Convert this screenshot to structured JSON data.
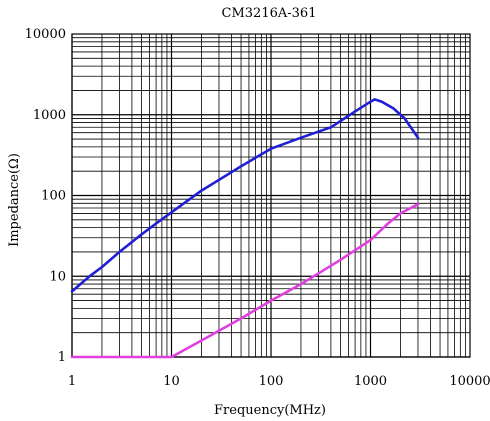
{
  "chart_data": {
    "type": "line",
    "title": "CM3216A-361",
    "xlabel": "Frequency(MHz)",
    "ylabel": "Impedance(Ω)",
    "xscale": "log",
    "yscale": "log",
    "xlim": [
      1,
      10000
    ],
    "ylim": [
      1,
      10000
    ],
    "x_ticks": [
      1,
      10,
      100,
      1000,
      10000
    ],
    "x_tick_labels": [
      "1",
      "10",
      "100",
      "1000",
      "10000"
    ],
    "y_ticks": [
      1,
      10,
      100,
      1000,
      10000
    ],
    "y_tick_labels": [
      "1",
      "10",
      "100",
      "1000",
      "10000"
    ],
    "grid": true,
    "series": [
      {
        "color": "#1f1fd6",
        "x": [
          1,
          1.5,
          2,
          3,
          5,
          7,
          10,
          20,
          50,
          100,
          200,
          400,
          700,
          1000,
          1100,
          1300,
          1700,
          2200,
          3000
        ],
        "y": [
          6.5,
          10,
          13,
          20,
          33,
          45,
          62,
          115,
          230,
          380,
          520,
          700,
          1100,
          1450,
          1550,
          1450,
          1200,
          900,
          520
        ]
      },
      {
        "color": "#e040e0",
        "x": [
          1,
          10,
          20,
          50,
          100,
          200,
          500,
          1000,
          1500,
          2000,
          3000
        ],
        "y": [
          1,
          1,
          1.6,
          3,
          5,
          8,
          16,
          28,
          45,
          60,
          78
        ]
      }
    ]
  }
}
